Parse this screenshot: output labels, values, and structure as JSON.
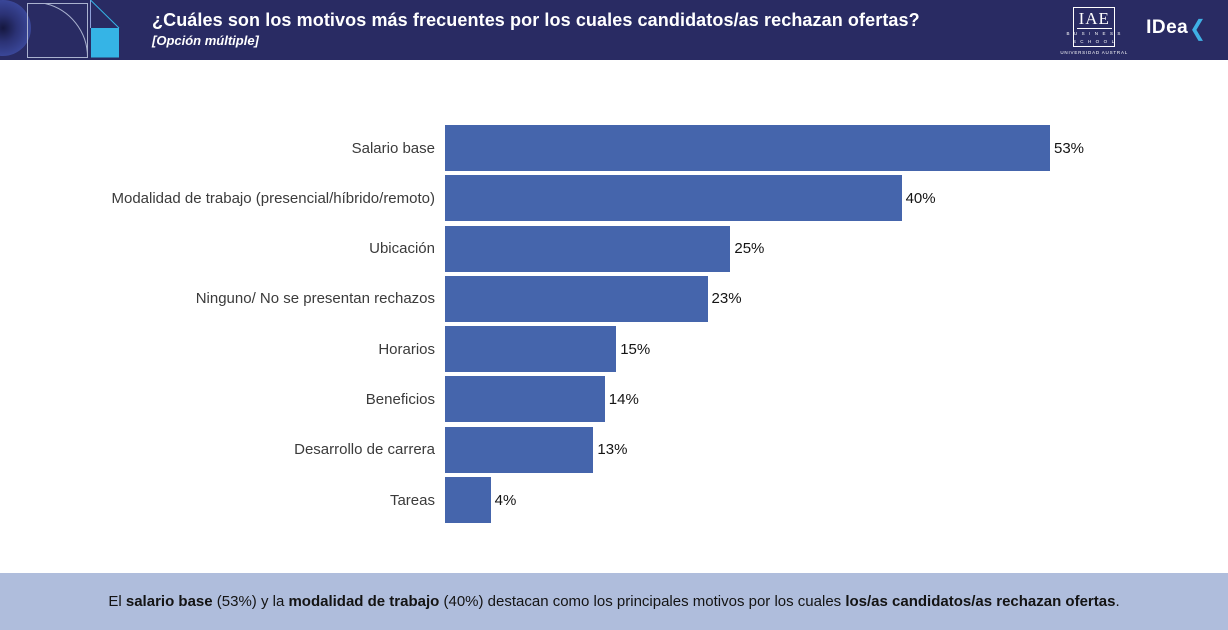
{
  "header": {
    "title": "¿Cuáles son los motivos más frecuentes por los cuales candidatos/as rechazan ofertas?",
    "subtitle": "[Opción múltiple]",
    "background_color": "#292b63",
    "accent_cyan": "#35b4e6",
    "logos": {
      "iae": {
        "acronym": "IAE",
        "line1": "B U S I N E S S",
        "line2": "S C H O O L",
        "sub": "UNIVERSIDAD AUSTRAL"
      },
      "idea": {
        "text": "IDea",
        "chevron": "❮"
      }
    }
  },
  "chart_data": {
    "type": "bar",
    "orientation": "horizontal",
    "title": "",
    "xlabel": "",
    "ylabel": "",
    "grid": false,
    "legend": null,
    "xlim": [
      0,
      53
    ],
    "bar_color": "#4565ac",
    "categories": [
      "Salario base",
      "Modalidad de trabajo (presencial/híbrido/remoto)",
      "Ubicación",
      "Ninguno/ No se presentan rechazos",
      "Horarios",
      "Beneficios",
      "Desarrollo de carrera",
      "Tareas"
    ],
    "values": [
      53,
      40,
      25,
      23,
      15,
      14,
      13,
      4
    ],
    "value_labels": [
      "53%",
      "40%",
      "25%",
      "23%",
      "15%",
      "14%",
      "13%",
      "4%"
    ]
  },
  "footer": {
    "background_color": "#afbddc",
    "segments": [
      {
        "text": "El ",
        "bold": false
      },
      {
        "text": "salario base",
        "bold": true
      },
      {
        "text": " (53%) y la ",
        "bold": false
      },
      {
        "text": "modalidad de trabajo",
        "bold": true
      },
      {
        "text": " (40%) destacan como los principales motivos por los cuales ",
        "bold": false
      },
      {
        "text": "los/as candidatos/as rechazan ofertas",
        "bold": true
      },
      {
        "text": ".",
        "bold": false
      }
    ]
  }
}
